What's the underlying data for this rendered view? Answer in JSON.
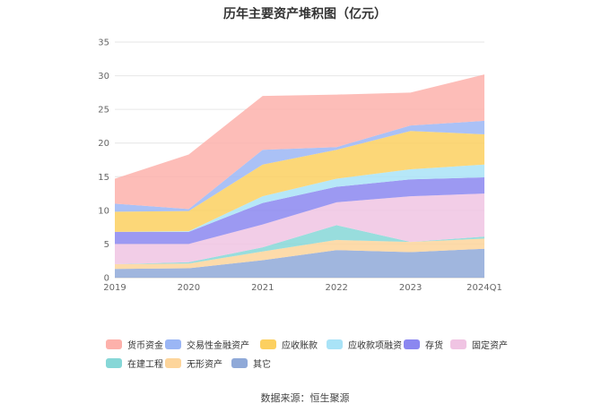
{
  "page": {
    "source": "数据来源：恒生聚源"
  },
  "chart_data": {
    "type": "area",
    "stacked": true,
    "title": "历年主要资产堆积图（亿元）",
    "categories": [
      "2019",
      "2020",
      "2021",
      "2022",
      "2023",
      "2024Q1"
    ],
    "yticks": [
      "0",
      "5",
      "10",
      "15",
      "20",
      "25",
      "30",
      "35"
    ],
    "ylim": [
      0,
      35
    ],
    "grid": true,
    "legend_position": "bottom",
    "series": [
      {
        "name": "其它",
        "color": "#8fa9d8",
        "values": [
          1.3,
          1.4,
          2.6,
          4.1,
          3.8,
          4.3
        ]
      },
      {
        "name": "无形资产",
        "color": "#fdd59b",
        "values": [
          0.7,
          0.7,
          1.3,
          1.5,
          1.5,
          1.5
        ]
      },
      {
        "name": "在建工程",
        "color": "#86d7d7",
        "values": [
          0.0,
          0.2,
          0.6,
          2.2,
          0.0,
          0.3
        ]
      },
      {
        "name": "固定资产",
        "color": "#f0c4e3",
        "values": [
          3.0,
          2.7,
          3.4,
          3.4,
          6.8,
          6.4
        ]
      },
      {
        "name": "存货",
        "color": "#8b87f0",
        "values": [
          1.8,
          1.8,
          3.2,
          2.3,
          2.5,
          2.4
        ]
      },
      {
        "name": "应收款项融资",
        "color": "#a9e3f7",
        "values": [
          0.0,
          0.1,
          1.0,
          1.2,
          1.5,
          1.9
        ]
      },
      {
        "name": "应收账款",
        "color": "#fcd060",
        "values": [
          3.0,
          3.0,
          4.7,
          4.3,
          5.7,
          4.5
        ]
      },
      {
        "name": "交易性金融资产",
        "color": "#9bb6f5",
        "values": [
          1.2,
          0.3,
          2.2,
          0.4,
          0.8,
          2.0
        ]
      },
      {
        "name": "货币资金",
        "color": "#fdb1ab",
        "values": [
          3.7,
          8.1,
          8.0,
          7.8,
          4.9,
          6.9
        ]
      }
    ],
    "legend_order": [
      "货币资金",
      "交易性金融资产",
      "应收账款",
      "应收款项融资",
      "存货",
      "固定资产",
      "在建工程",
      "无形资产",
      "其它"
    ]
  }
}
